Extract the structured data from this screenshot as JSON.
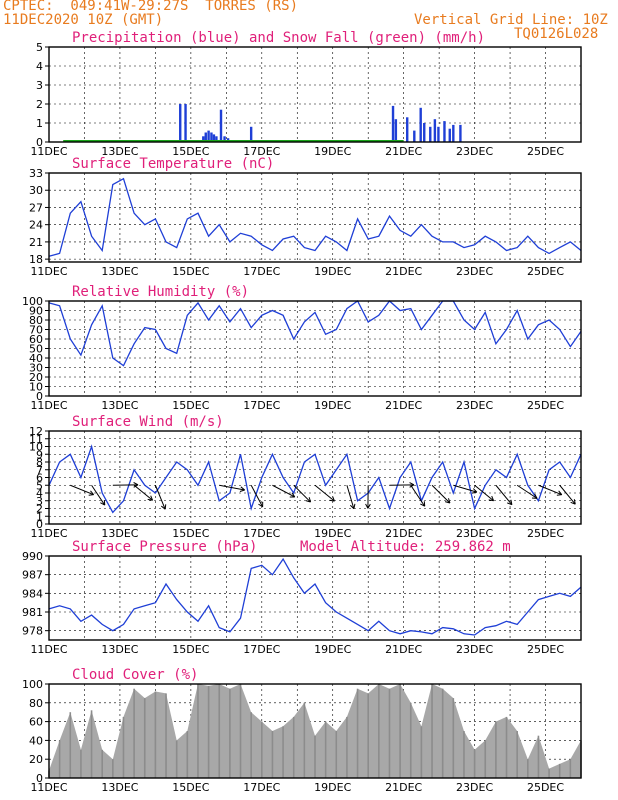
{
  "header": {
    "line1_left": "CPTEC:  049:41W-29:27S  TORRES (RS)",
    "line2_left": "11DEC2020 10Z (GMT)",
    "line2_right": "Vertical Grid Line: 10Z",
    "line3_right": "TQ0126L028"
  },
  "colors": {
    "series": "#1f3fd6",
    "snow": "#1aa51a",
    "title": "#e0207a",
    "header": "#e87b1f",
    "cloud": "#a8a8a8"
  },
  "x_tick_labels": [
    "11DEC",
    "13DEC",
    "15DEC",
    "17DEC",
    "19DEC",
    "21DEC",
    "23DEC",
    "25DEC"
  ],
  "chart_data": [
    {
      "type": "bar",
      "title": "Precipitation (blue) and Snow Fall (green) (mm/h)",
      "ylim": [
        0,
        5
      ],
      "yticks": [
        0,
        1,
        2,
        3,
        4,
        5
      ],
      "x_unit": "days since 11DEC 10Z",
      "series": [
        {
          "name": "Precipitation",
          "values": [
            [
              3.7,
              2.0
            ],
            [
              3.85,
              2.0
            ],
            [
              4.35,
              0.3
            ],
            [
              4.42,
              0.5
            ],
            [
              4.5,
              0.6
            ],
            [
              4.58,
              0.5
            ],
            [
              4.65,
              0.4
            ],
            [
              4.72,
              0.3
            ],
            [
              4.85,
              1.7
            ],
            [
              4.95,
              0.3
            ],
            [
              5.05,
              0.2
            ],
            [
              5.7,
              0.8
            ],
            [
              9.7,
              1.9
            ],
            [
              9.78,
              1.2
            ],
            [
              10.1,
              1.3
            ],
            [
              10.3,
              0.6
            ],
            [
              10.48,
              1.8
            ],
            [
              10.58,
              1.0
            ],
            [
              10.75,
              0.8
            ],
            [
              10.88,
              1.2
            ],
            [
              10.98,
              0.8
            ],
            [
              11.15,
              1.1
            ],
            [
              11.3,
              0.7
            ],
            [
              11.4,
              0.9
            ],
            [
              11.6,
              0.9
            ]
          ]
        },
        {
          "name": "Snow Fall",
          "values": []
        }
      ]
    },
    {
      "type": "line",
      "title": "Surface Temperature (nC)",
      "ylim": [
        17.5,
        33
      ],
      "yticks": [
        18,
        21,
        24,
        27,
        30,
        33
      ],
      "x": [
        0,
        0.3,
        0.6,
        0.9,
        1.2,
        1.5,
        1.8,
        2.1,
        2.4,
        2.7,
        3.0,
        3.3,
        3.6,
        3.9,
        4.2,
        4.5,
        4.8,
        5.1,
        5.4,
        5.7,
        6.0,
        6.3,
        6.6,
        6.9,
        7.2,
        7.5,
        7.8,
        8.1,
        8.4,
        8.7,
        9.0,
        9.3,
        9.6,
        9.9,
        10.2,
        10.5,
        10.8,
        11.1,
        11.4,
        11.7,
        12.0,
        12.3,
        12.6,
        12.9,
        13.2,
        13.5,
        13.8,
        14.1,
        14.4,
        14.7,
        15.0
      ],
      "y": [
        18.5,
        19,
        26,
        28,
        22,
        19.5,
        31,
        32,
        26,
        24,
        25,
        21,
        20,
        25,
        26,
        22,
        24,
        21,
        22.5,
        22,
        20.5,
        19.5,
        21.5,
        22,
        20,
        19.5,
        22,
        21,
        19.5,
        25,
        21.5,
        22,
        25.5,
        23,
        22,
        24,
        22,
        21,
        21,
        20,
        20.5,
        22,
        21,
        19.5,
        20,
        22,
        20,
        19,
        20,
        21,
        19.5
      ]
    },
    {
      "type": "line",
      "title": "Relative Humidity (%)",
      "ylim": [
        0,
        100
      ],
      "yticks": [
        0,
        10,
        20,
        30,
        40,
        50,
        60,
        70,
        80,
        90,
        100
      ],
      "x": [
        0,
        0.3,
        0.6,
        0.9,
        1.2,
        1.5,
        1.8,
        2.1,
        2.4,
        2.7,
        3.0,
        3.3,
        3.6,
        3.9,
        4.2,
        4.5,
        4.8,
        5.1,
        5.4,
        5.7,
        6.0,
        6.3,
        6.6,
        6.9,
        7.2,
        7.5,
        7.8,
        8.1,
        8.4,
        8.7,
        9.0,
        9.3,
        9.6,
        9.9,
        10.2,
        10.5,
        10.8,
        11.1,
        11.4,
        11.7,
        12.0,
        12.3,
        12.6,
        12.9,
        13.2,
        13.5,
        13.8,
        14.1,
        14.4,
        14.7,
        15.0
      ],
      "y": [
        98,
        95,
        60,
        43,
        75,
        95,
        40,
        32,
        55,
        72,
        70,
        50,
        45,
        85,
        98,
        80,
        95,
        78,
        92,
        72,
        85,
        90,
        85,
        60,
        78,
        88,
        65,
        70,
        92,
        100,
        78,
        85,
        100,
        90,
        92,
        70,
        85,
        100,
        100,
        80,
        70,
        88,
        55,
        70,
        90,
        60,
        75,
        80,
        70,
        52,
        68
      ]
    },
    {
      "type": "line",
      "title": "Surface Wind (m/s)",
      "ylim": [
        0,
        12
      ],
      "yticks": [
        0,
        1,
        2,
        3,
        4,
        5,
        6,
        7,
        8,
        9,
        10,
        11,
        12
      ],
      "x": [
        0,
        0.3,
        0.6,
        0.9,
        1.2,
        1.5,
        1.8,
        2.1,
        2.4,
        2.7,
        3.0,
        3.3,
        3.6,
        3.9,
        4.2,
        4.5,
        4.8,
        5.1,
        5.4,
        5.7,
        6.0,
        6.3,
        6.6,
        6.9,
        7.2,
        7.5,
        7.8,
        8.1,
        8.4,
        8.7,
        9.0,
        9.3,
        9.6,
        9.9,
        10.2,
        10.5,
        10.8,
        11.1,
        11.4,
        11.7,
        12.0,
        12.3,
        12.6,
        12.9,
        13.2,
        13.5,
        13.8,
        14.1,
        14.4,
        14.7,
        15.0
      ],
      "y": [
        5,
        8,
        9,
        6,
        10,
        4,
        1.5,
        3,
        7,
        5,
        4,
        6,
        8,
        7,
        5,
        8,
        3,
        4,
        9,
        2,
        6,
        9,
        6,
        4,
        8,
        9,
        5,
        7,
        9,
        3,
        4,
        6,
        2,
        6,
        8,
        3,
        6,
        8,
        4,
        8,
        2,
        5,
        7,
        6,
        9,
        5,
        3,
        7,
        8,
        6,
        9
      ],
      "arrows": [
        [
          0.6,
          3.6,
          5.9
        ],
        [
          1.2,
          3.4,
          5.3
        ],
        [
          1.8,
          3.6,
          6.3
        ],
        [
          2.4,
          3.4,
          5.6
        ],
        [
          3.0,
          3.7,
          5.1
        ],
        [
          4.8,
          3.7,
          6.1
        ],
        [
          5.7,
          3.5,
          5.2
        ],
        [
          6.3,
          3.6,
          5.8
        ],
        [
          6.9,
          3.4,
          5.5
        ],
        [
          7.5,
          3.6,
          5.6
        ],
        [
          8.4,
          3.5,
          5.0
        ],
        [
          9.0,
          3.3,
          4.7
        ],
        [
          9.6,
          3.5,
          6.3
        ],
        [
          10.2,
          3.6,
          5.3
        ],
        [
          10.8,
          3.6,
          5.5
        ],
        [
          11.4,
          3.5,
          6.0
        ],
        [
          12.0,
          3.5,
          5.6
        ],
        [
          12.6,
          3.6,
          5.4
        ],
        [
          13.2,
          3.4,
          5.7
        ],
        [
          13.8,
          3.6,
          5.9
        ],
        [
          14.4,
          3.5,
          5.4
        ]
      ]
    },
    {
      "type": "line",
      "title": "Surface Pressure (hPa)",
      "annotation": "Model Altitude: 259.862 m",
      "ylim": [
        976.5,
        990
      ],
      "yticks": [
        978,
        981,
        984,
        987,
        990
      ],
      "x": [
        0,
        0.3,
        0.6,
        0.9,
        1.2,
        1.5,
        1.8,
        2.1,
        2.4,
        2.7,
        3.0,
        3.3,
        3.6,
        3.9,
        4.2,
        4.5,
        4.8,
        5.1,
        5.4,
        5.7,
        6.0,
        6.3,
        6.6,
        6.9,
        7.2,
        7.5,
        7.8,
        8.1,
        8.4,
        8.7,
        9.0,
        9.3,
        9.6,
        9.9,
        10.2,
        10.5,
        10.8,
        11.1,
        11.4,
        11.7,
        12.0,
        12.3,
        12.6,
        12.9,
        13.2,
        13.5,
        13.8,
        14.1,
        14.4,
        14.7,
        15.0
      ],
      "y": [
        981.5,
        982,
        981.5,
        979.5,
        980.5,
        979,
        978,
        979,
        981.5,
        982,
        982.5,
        985.5,
        983,
        981,
        979.5,
        982,
        978.5,
        977.8,
        980,
        988,
        988.5,
        987,
        989.5,
        986.5,
        984,
        985.5,
        982.5,
        981,
        980,
        979,
        978,
        979.5,
        978,
        977.5,
        978,
        977.8,
        977.5,
        978.5,
        978.3,
        977.5,
        977.3,
        978.5,
        978.8,
        979.5,
        979,
        981,
        983,
        983.5,
        984,
        983.5,
        985
      ]
    },
    {
      "type": "bar",
      "title": "Cloud Cover (%)",
      "ylim": [
        0,
        100
      ],
      "yticks": [
        0,
        20,
        40,
        60,
        80,
        100
      ],
      "x": [
        0,
        0.3,
        0.6,
        0.9,
        1.2,
        1.5,
        1.8,
        2.1,
        2.4,
        2.7,
        3.0,
        3.3,
        3.6,
        3.9,
        4.2,
        4.5,
        4.8,
        5.1,
        5.4,
        5.7,
        6.0,
        6.3,
        6.6,
        6.9,
        7.2,
        7.5,
        7.8,
        8.1,
        8.4,
        8.7,
        9.0,
        9.3,
        9.6,
        9.9,
        10.2,
        10.5,
        10.8,
        11.1,
        11.4,
        11.7,
        12.0,
        12.3,
        12.6,
        12.9,
        13.2,
        13.5,
        13.8,
        14.1,
        14.4,
        14.7,
        15.0
      ],
      "y": [
        8,
        40,
        70,
        30,
        72,
        30,
        20,
        65,
        95,
        85,
        92,
        90,
        40,
        50,
        100,
        98,
        100,
        95,
        100,
        70,
        60,
        50,
        55,
        65,
        80,
        45,
        60,
        50,
        65,
        95,
        90,
        100,
        95,
        100,
        80,
        55,
        100,
        95,
        85,
        50,
        30,
        40,
        60,
        65,
        50,
        20,
        45,
        10,
        15,
        20,
        40
      ]
    }
  ]
}
